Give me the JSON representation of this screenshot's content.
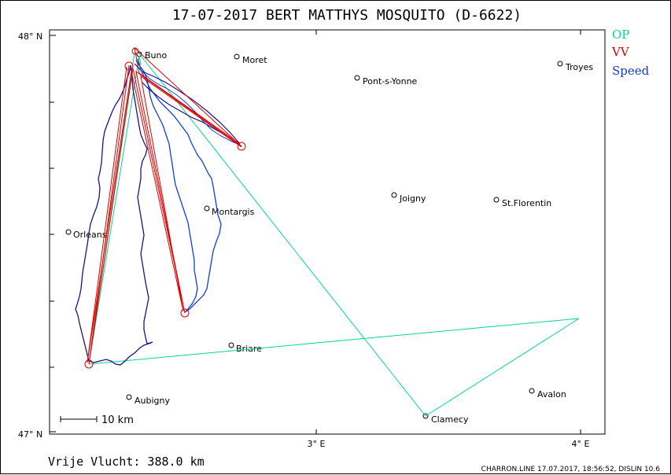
{
  "title": "17-07-2017   BERT MATTHYS   MOSQUITO (D-6622)",
  "axes": {
    "lat_top": "48° N",
    "lat_bottom": "47° N",
    "lon_3": "3° E",
    "lon_4": "4° E"
  },
  "legend": {
    "op": {
      "label": "OP",
      "color": "#00d890"
    },
    "vv": {
      "label": "VV",
      "color": "#e00000"
    },
    "speed": {
      "label": "Speed",
      "color": "#1040d0"
    }
  },
  "scale_label": "10  km",
  "distance_label": "Vrije Vlucht:  388.0 km",
  "footer": "CHARRON.LINE 17.07.2017, 18:56:52, DISLIN 10.6",
  "colors": {
    "track_dark": "#20108a",
    "track_blue": "#1040d0",
    "op": "#00d890",
    "vv": "#e00000"
  },
  "towns": [
    {
      "name": "Buno"
    },
    {
      "name": "Moret"
    },
    {
      "name": "Pont-s-Yonne"
    },
    {
      "name": "Troyes"
    },
    {
      "name": "Joigny"
    },
    {
      "name": "St.Florentin"
    },
    {
      "name": "Montargis"
    },
    {
      "name": "Orleans"
    },
    {
      "name": "Briare"
    },
    {
      "name": "Avalon"
    },
    {
      "name": "Aubigny"
    },
    {
      "name": "Clamecy"
    }
  ]
}
